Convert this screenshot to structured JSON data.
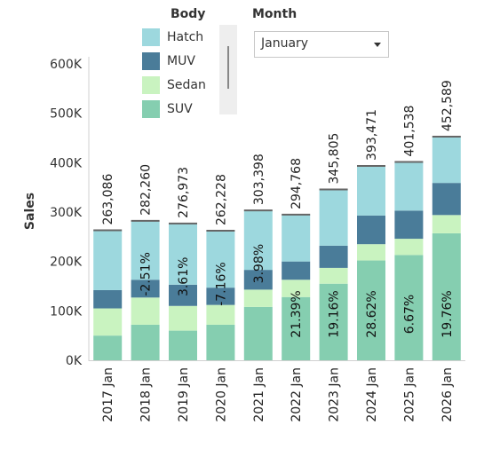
{
  "legend": {
    "title": "Body",
    "items": [
      {
        "label": "Hatch",
        "color": "#9dd8de"
      },
      {
        "label": "MUV",
        "color": "#4a7c99"
      },
      {
        "label": "Sedan",
        "color": "#c9f3c0"
      },
      {
        "label": "SUV",
        "color": "#85ceb0"
      }
    ]
  },
  "filter": {
    "title": "Month",
    "selected": "January",
    "icon": "chevron-down-icon"
  },
  "chart_data": {
    "type": "bar",
    "stacked": true,
    "ylabel": "Sales",
    "ylim": [
      0,
      600000
    ],
    "yticks": [
      0,
      100000,
      200000,
      300000,
      400000,
      500000,
      600000
    ],
    "ytick_labels": [
      "0K",
      "100K",
      "200K",
      "300K",
      "400K",
      "500K",
      "600K"
    ],
    "categories": [
      "2017 Jan",
      "2018 Jan",
      "2019 Jan",
      "2020 Jan",
      "2021 Jan",
      "2022 Jan",
      "2023 Jan",
      "2024 Jan",
      "2025 Jan",
      "2026 Jan"
    ],
    "series": [
      {
        "name": "SUV",
        "color": "#85ceb0",
        "values": [
          50000,
          72000,
          60000,
          72000,
          108000,
          128000,
          155000,
          202000,
          213000,
          257000
        ]
      },
      {
        "name": "Sedan",
        "color": "#c9f3c0",
        "values": [
          55000,
          55000,
          50000,
          40000,
          35000,
          35000,
          32000,
          33000,
          33000,
          37000
        ]
      },
      {
        "name": "MUV",
        "color": "#4a7c99",
        "values": [
          37000,
          36000,
          43000,
          35000,
          40000,
          37000,
          45000,
          58000,
          57000,
          65000
        ]
      },
      {
        "name": "Hatch",
        "color": "#9dd8de",
        "values": [
          121086,
          119260,
          123973,
          115228,
          120398,
          94768,
          113805,
          100471,
          98538,
          93589
        ]
      }
    ],
    "totals": [
      263086,
      282260,
      276973,
      262228,
      303398,
      294768,
      345805,
      393471,
      401538,
      452589
    ],
    "total_labels": [
      "263,086",
      "282,260",
      "276,973",
      "262,228",
      "303,398",
      "294,768",
      "345,805",
      "393,471",
      "401,538",
      "452,589"
    ],
    "growth_labels": [
      "",
      "-2.51%",
      "3.61%",
      "-7.16%",
      "3.98%",
      "21.39%",
      "19.16%",
      "28.62%",
      "6.67%",
      "19.76%"
    ]
  }
}
